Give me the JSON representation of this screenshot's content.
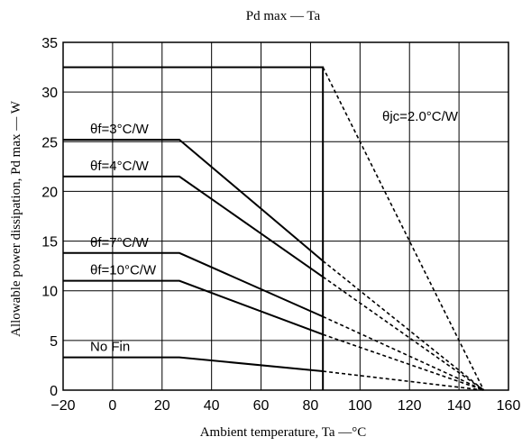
{
  "chart_data": {
    "type": "line",
    "title": "Pd max — Ta",
    "xlabel": "Ambient temperature, Ta —°C",
    "ylabel": "Allowable power dissipation, Pd max — W",
    "xlim": [
      -20,
      160
    ],
    "ylim": [
      0,
      35
    ],
    "x_ticks": [
      "−20",
      "0",
      "20",
      "40",
      "60",
      "80",
      "100",
      "120",
      "140",
      "160"
    ],
    "y_ticks": [
      "0",
      "5",
      "10",
      "15",
      "20",
      "25",
      "30",
      "35"
    ],
    "grid": true,
    "annotation": "θjc=2.0°C/W",
    "series": [
      {
        "name": "",
        "solid": [
          [
            -20,
            32.5
          ],
          [
            85,
            32.5
          ],
          [
            85,
            0
          ]
        ],
        "dashed": [
          [
            85,
            32.5
          ],
          [
            150,
            0
          ]
        ]
      },
      {
        "name": "θf=3°C/W",
        "solid": [
          [
            -20,
            25.2
          ],
          [
            27,
            25.2
          ],
          [
            85,
            13.0
          ]
        ],
        "dashed": [
          [
            85,
            13.0
          ],
          [
            150,
            0
          ]
        ]
      },
      {
        "name": "θf=4°C/W",
        "solid": [
          [
            -20,
            21.5
          ],
          [
            27,
            21.5
          ],
          [
            85,
            11.4
          ]
        ],
        "dashed": [
          [
            85,
            11.4
          ],
          [
            150,
            0
          ]
        ]
      },
      {
        "name": "θf=7°C/W",
        "solid": [
          [
            -20,
            13.8
          ],
          [
            27,
            13.8
          ],
          [
            85,
            7.4
          ]
        ],
        "dashed": [
          [
            85,
            7.4
          ],
          [
            150,
            0
          ]
        ]
      },
      {
        "name": "θf=10°C/W",
        "solid": [
          [
            -20,
            11.0
          ],
          [
            27,
            11.0
          ],
          [
            85,
            5.6
          ]
        ],
        "dashed": [
          [
            85,
            5.6
          ],
          [
            150,
            0
          ]
        ]
      },
      {
        "name": "No Fin",
        "solid": [
          [
            -20,
            3.3
          ],
          [
            27,
            3.3
          ],
          [
            85,
            1.9
          ]
        ],
        "dashed": [
          [
            85,
            1.9
          ],
          [
            150,
            0
          ]
        ]
      }
    ]
  }
}
